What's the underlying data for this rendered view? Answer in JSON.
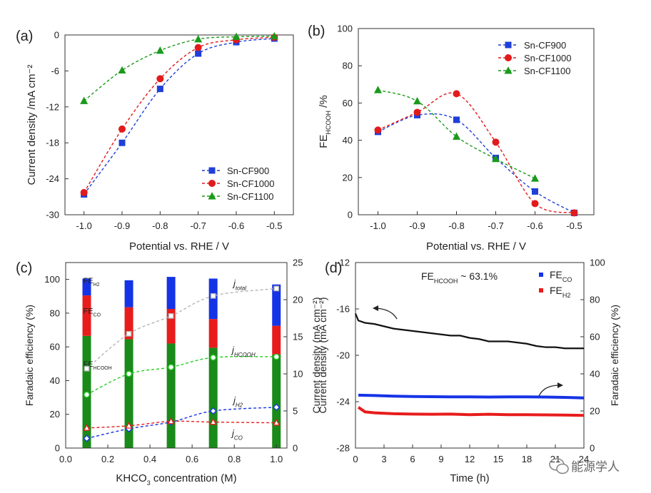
{
  "watermark": {
    "text": "能源学人",
    "icon": "wechat-icon"
  },
  "chart_data": [
    {
      "panel": "(a)",
      "type": "line",
      "xlabel": "Potential vs. RHE / V",
      "ylabel": "Current density /mA cm⁻²",
      "xlim": [
        -1.05,
        -0.45
      ],
      "ylim": [
        -30,
        0
      ],
      "xticks": [
        -1.0,
        -0.9,
        -0.8,
        -0.7,
        -0.6,
        -0.5
      ],
      "yticks": [
        -30,
        -24,
        -18,
        -12,
        -6,
        0
      ],
      "legend_position": "bottom-right",
      "x": [
        -1.0,
        -0.9,
        -0.8,
        -0.7,
        -0.6,
        -0.5
      ],
      "series": [
        {
          "name": "Sn-CF900",
          "color": "#1f3fd8",
          "marker": "square",
          "values": [
            -26.6,
            -18.0,
            -9.0,
            -3.1,
            -1.2,
            -0.6
          ]
        },
        {
          "name": "Sn-CF1000",
          "color": "#e31a1c",
          "marker": "circle",
          "values": [
            -26.3,
            -15.7,
            -7.3,
            -2.1,
            -0.8,
            -0.4
          ]
        },
        {
          "name": "Sn-CF1100",
          "color": "#1a9a1a",
          "marker": "triangle",
          "values": [
            -11.0,
            -5.9,
            -2.6,
            -0.7,
            -0.3,
            -0.2
          ]
        }
      ]
    },
    {
      "panel": "(b)",
      "type": "line",
      "xlabel": "Potential vs. RHE / V",
      "ylabel": "FE",
      "ylabel_sub": "HCOOH",
      "ylabel_suffix": " /%",
      "xlim": [
        -1.05,
        -0.45
      ],
      "ylim": [
        0,
        100
      ],
      "xticks": [
        -1.0,
        -0.9,
        -0.8,
        -0.7,
        -0.6,
        -0.5
      ],
      "yticks": [
        0,
        20,
        40,
        60,
        80,
        100
      ],
      "legend_position": "top-right",
      "series": [
        {
          "name": "Sn-CF900",
          "color": "#1f3fd8",
          "marker": "square",
          "x": [
            -1.0,
            -0.9,
            -0.8,
            -0.7,
            -0.6,
            -0.5
          ],
          "values": [
            44.5,
            53.5,
            51.0,
            30.5,
            12.5,
            1.0
          ]
        },
        {
          "name": "Sn-CF1000",
          "color": "#e31a1c",
          "marker": "circle",
          "x": [
            -1.0,
            -0.9,
            -0.8,
            -0.7,
            -0.6,
            -0.5
          ],
          "values": [
            45.5,
            55.0,
            65.0,
            39.0,
            6.0,
            1.0
          ]
        },
        {
          "name": "Sn-CF1100",
          "color": "#1a9a1a",
          "marker": "triangle",
          "x": [
            -1.0,
            -0.9,
            -0.8,
            -0.7,
            -0.6
          ],
          "values": [
            67.0,
            61.0,
            42.0,
            30.0,
            19.5
          ]
        }
      ]
    },
    {
      "panel": "(c)",
      "type": "bar",
      "xlabel": "KHCO",
      "xlabel_sub": "3",
      "xlabel_suffix": " concentration (M)",
      "ylabel_left": "Faradaic efficiency (%)",
      "ylabel_right": "Current density (mA cm⁻²)",
      "xlim": [
        0,
        1.05
      ],
      "ylim_left": [
        0,
        110
      ],
      "ylim_right": [
        0,
        25
      ],
      "xticks": [
        0.0,
        0.2,
        0.4,
        0.6,
        0.8,
        1.0
      ],
      "yticks_left": [
        0,
        20,
        40,
        60,
        80,
        100
      ],
      "yticks_right": [
        0,
        5,
        10,
        15,
        20,
        25
      ],
      "categories": [
        0.1,
        0.3,
        0.5,
        0.7,
        1.0
      ],
      "stack_labels": [
        {
          "text": "FE",
          "sub": "H2"
        },
        {
          "text": "FE",
          "sub": "CO"
        },
        {
          "text": "FE",
          "sub": "HCOOH"
        }
      ],
      "series": [
        {
          "name": "FE_HCOOH",
          "color": "#1a8a1a",
          "values": [
            66.5,
            64.5,
            62.0,
            59.5,
            55.5
          ]
        },
        {
          "name": "FE_CO",
          "color": "#e81c1c",
          "values": [
            24.0,
            19.0,
            20.5,
            17.0,
            17.0
          ]
        },
        {
          "name": "FE_H2",
          "color": "#1533e6",
          "values": [
            10.0,
            16.0,
            19.0,
            24.0,
            24.5
          ]
        }
      ],
      "current_series": [
        {
          "label": "j",
          "sub": "total",
          "color": "#b5b5b5",
          "marker": "square",
          "values": [
            10.7,
            15.4,
            17.8,
            20.5,
            21.5
          ]
        },
        {
          "label": "j",
          "sub": "HCOOH",
          "color": "#22cc22",
          "marker": "circle",
          "values": [
            7.2,
            10.0,
            10.9,
            12.2,
            12.3
          ]
        },
        {
          "label": "j",
          "sub": "H2",
          "color": "#1533e6",
          "marker": "diamond",
          "values": [
            1.3,
            2.6,
            3.5,
            5.0,
            5.5
          ]
        },
        {
          "label": "j",
          "sub": "CO",
          "color": "#e81c1c",
          "marker": "triangle",
          "values": [
            2.7,
            3.0,
            3.6,
            3.5,
            3.4
          ]
        }
      ]
    },
    {
      "panel": "(d)",
      "type": "scatter",
      "annotation": "FE",
      "annotation_sub": "HCOOH",
      "annotation_suffix": " ~ 63.1%",
      "xlabel": "Time (h)",
      "ylabel_left": "Current density (mA cm⁻²)",
      "ylabel_right": "Faradaic efficiency (%)",
      "xlim": [
        0,
        24
      ],
      "ylim_left": [
        -28,
        -12
      ],
      "ylim_right": [
        0,
        100
      ],
      "xticks": [
        0,
        3,
        6,
        9,
        12,
        15,
        18,
        21,
        24
      ],
      "yticks_left": [
        -28,
        -24,
        -20,
        -16,
        -12
      ],
      "yticks_right": [
        0,
        20,
        40,
        60,
        80,
        100
      ],
      "legend": [
        {
          "text": "FE",
          "sub": "CO",
          "color": "#1533e6"
        },
        {
          "text": "FE",
          "sub": "H2",
          "color": "#e81c1c"
        }
      ],
      "series": [
        {
          "name": "current density",
          "color": "#111111",
          "x": [
            0,
            0.3,
            1,
            2,
            3,
            4,
            5,
            6,
            7,
            8,
            9,
            10,
            11,
            12,
            13,
            14,
            15,
            16,
            17,
            18,
            19,
            20,
            21,
            22,
            23,
            24
          ],
          "values": [
            -16.4,
            -17.0,
            -17.2,
            -17.3,
            -17.5,
            -17.7,
            -17.8,
            -17.9,
            -18.0,
            -18.1,
            -18.2,
            -18.3,
            -18.3,
            -18.5,
            -18.6,
            -18.8,
            -18.8,
            -18.8,
            -18.9,
            -19.0,
            -19.2,
            -19.3,
            -19.3,
            -19.4,
            -19.4,
            -19.4
          ]
        },
        {
          "name": "FE_CO",
          "color": "#1533e6",
          "x": [
            0.3,
            2,
            4,
            6,
            8,
            10,
            12,
            14,
            16,
            18,
            20,
            22,
            24
          ],
          "values": [
            28.5,
            28.3,
            28.0,
            27.8,
            27.7,
            27.6,
            27.6,
            27.5,
            27.6,
            27.6,
            27.5,
            27.3,
            27.0
          ]
        },
        {
          "name": "FE_H2",
          "color": "#e81c1c",
          "x": [
            0.3,
            1,
            2,
            4,
            6,
            8,
            10,
            12,
            14,
            16,
            18,
            20,
            22,
            24
          ],
          "values": [
            22.0,
            19.5,
            19.0,
            18.5,
            18.3,
            18.2,
            18.3,
            18.0,
            18.2,
            18.0,
            18.0,
            17.9,
            17.8,
            17.6
          ]
        }
      ]
    }
  ]
}
